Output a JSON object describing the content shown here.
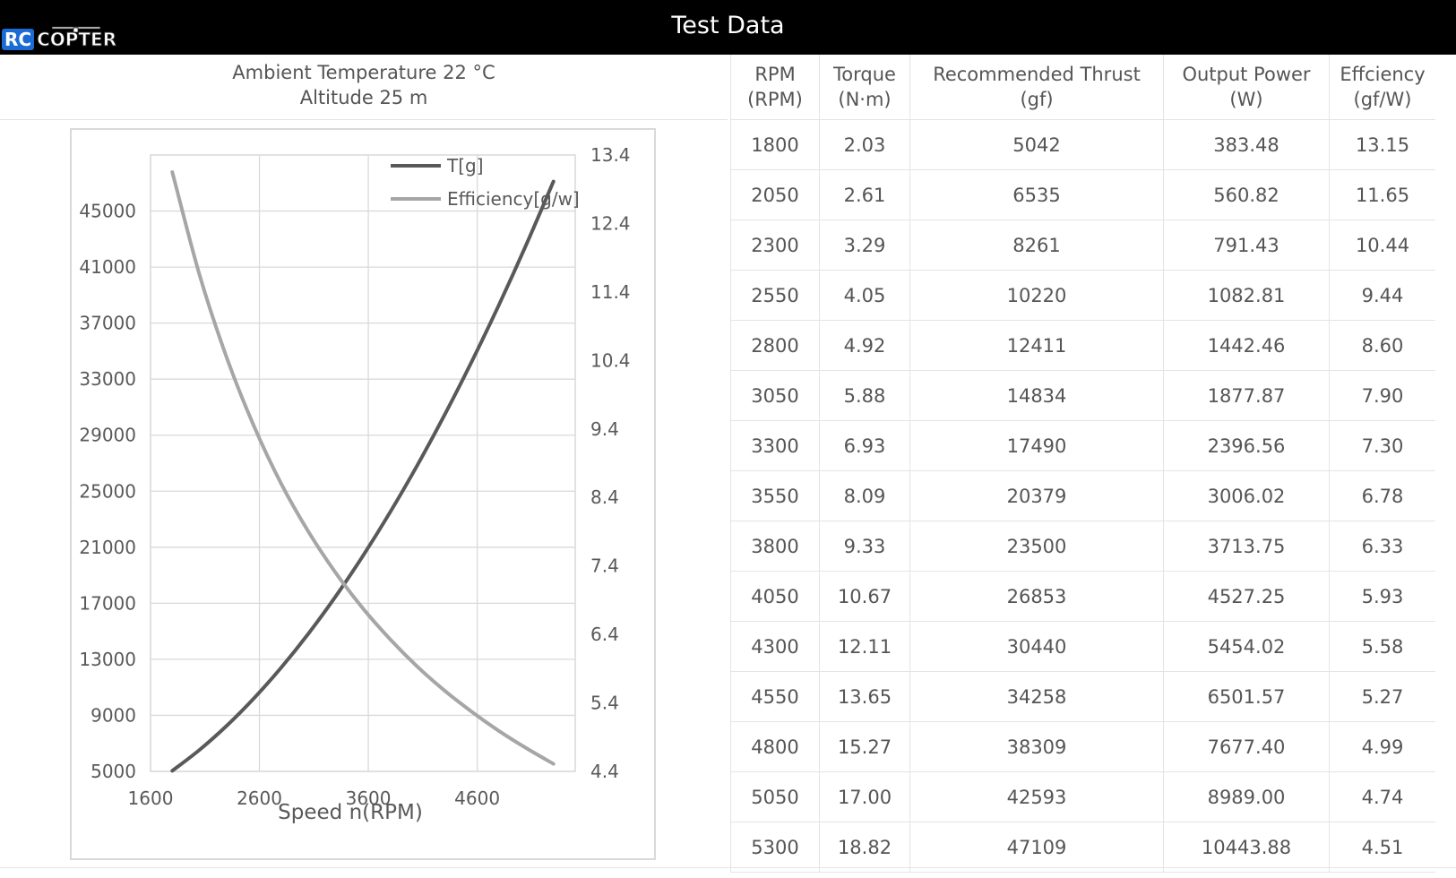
{
  "header": {
    "title": "Test Data"
  },
  "logo": {
    "text_rc": "RC",
    "text_rest": "COPTER"
  },
  "conditions": {
    "ambient_temperature": "Ambient Temperature  22 °C",
    "altitude": "Altitude  25 m"
  },
  "table": {
    "columns": [
      {
        "line1": "RPM",
        "line2": "(RPM)"
      },
      {
        "line1": "Torque",
        "line2": "(N·m)"
      },
      {
        "line1": "Recommended Thrust",
        "line2": "(gf)"
      },
      {
        "line1": "Output Power",
        "line2": "(W)"
      },
      {
        "line1": "Effciency",
        "line2": "(gf/W)"
      }
    ],
    "rows": [
      [
        "1800",
        "2.03",
        "5042",
        "383.48",
        "13.15"
      ],
      [
        "2050",
        "2.61",
        "6535",
        "560.82",
        "11.65"
      ],
      [
        "2300",
        "3.29",
        "8261",
        "791.43",
        "10.44"
      ],
      [
        "2550",
        "4.05",
        "10220",
        "1082.81",
        "9.44"
      ],
      [
        "2800",
        "4.92",
        "12411",
        "1442.46",
        "8.60"
      ],
      [
        "3050",
        "5.88",
        "14834",
        "1877.87",
        "7.90"
      ],
      [
        "3300",
        "6.93",
        "17490",
        "2396.56",
        "7.30"
      ],
      [
        "3550",
        "8.09",
        "20379",
        "3006.02",
        "6.78"
      ],
      [
        "3800",
        "9.33",
        "23500",
        "3713.75",
        "6.33"
      ],
      [
        "4050",
        "10.67",
        "26853",
        "4527.25",
        "5.93"
      ],
      [
        "4300",
        "12.11",
        "30440",
        "5454.02",
        "5.58"
      ],
      [
        "4550",
        "13.65",
        "34258",
        "6501.57",
        "5.27"
      ],
      [
        "4800",
        "15.27",
        "38309",
        "7677.40",
        "4.99"
      ],
      [
        "5050",
        "17.00",
        "42593",
        "8989.00",
        "4.74"
      ],
      [
        "5300",
        "18.82",
        "47109",
        "10443.88",
        "4.51"
      ]
    ]
  },
  "chart_data": {
    "type": "line",
    "title": "",
    "xlabel": "Speed n(RPM)",
    "ylabel": "",
    "y2label": "",
    "xlim": [
      1600,
      5500
    ],
    "xticks": [
      1600,
      2600,
      3600,
      4600
    ],
    "ylim": [
      5000,
      49000
    ],
    "yticks": [
      5000,
      9000,
      13000,
      17000,
      21000,
      25000,
      29000,
      33000,
      37000,
      41000,
      45000
    ],
    "y2lim": [
      4.4,
      13.4
    ],
    "y2ticks": [
      4.4,
      5.4,
      6.4,
      7.4,
      8.4,
      9.4,
      10.4,
      11.4,
      12.4,
      13.4
    ],
    "grid": true,
    "legend_position": "top-right",
    "x": [
      1800,
      2050,
      2300,
      2550,
      2800,
      3050,
      3300,
      3550,
      3800,
      4050,
      4300,
      4550,
      4800,
      5050,
      5300
    ],
    "series": [
      {
        "name": "T[g]",
        "axis": "left",
        "color": "#595959",
        "values": [
          5042,
          6535,
          8261,
          10220,
          12411,
          14834,
          17490,
          20379,
          23500,
          26853,
          30440,
          34258,
          38309,
          42593,
          47109
        ]
      },
      {
        "name": "Efficiency[g/w]",
        "axis": "right",
        "color": "#a6a6a6",
        "values": [
          13.15,
          11.65,
          10.44,
          9.44,
          8.6,
          7.9,
          7.3,
          6.78,
          6.33,
          5.93,
          5.58,
          5.27,
          4.99,
          4.74,
          4.51
        ]
      }
    ]
  }
}
